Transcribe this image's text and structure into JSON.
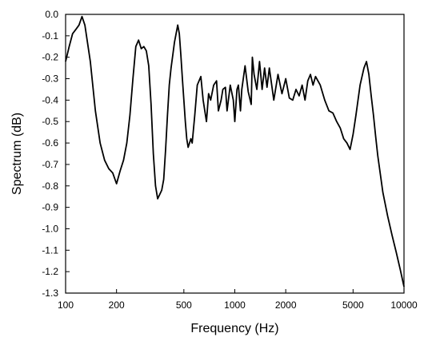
{
  "chart_data": {
    "type": "line",
    "title": "",
    "xlabel": "Frequency (Hz)",
    "ylabel": "Spectrum (dB)",
    "xscale": "log",
    "xlim": [
      100,
      10000
    ],
    "ylim": [
      -1.3,
      0.0
    ],
    "grid": false,
    "legend": "none",
    "x_ticks": [
      {
        "value": 100,
        "label": "100"
      },
      {
        "value": 200,
        "label": "200"
      },
      {
        "value": 500,
        "label": "500"
      },
      {
        "value": 1000,
        "label": "1000"
      },
      {
        "value": 2000,
        "label": "2000"
      },
      {
        "value": 5000,
        "label": "5000"
      },
      {
        "value": 10000,
        "label": "10000"
      }
    ],
    "y_ticks": [
      {
        "value": 0.0,
        "label": "0.0"
      },
      {
        "value": -0.1,
        "label": "-0.1"
      },
      {
        "value": -0.2,
        "label": "-0.2"
      },
      {
        "value": -0.3,
        "label": "-0.3"
      },
      {
        "value": -0.4,
        "label": "-0.4"
      },
      {
        "value": -0.5,
        "label": "-0.5"
      },
      {
        "value": -0.6,
        "label": "-0.6"
      },
      {
        "value": -0.7,
        "label": "-0.7"
      },
      {
        "value": -0.8,
        "label": "-0.8"
      },
      {
        "value": -0.9,
        "label": "-0.9"
      },
      {
        "value": -1.0,
        "label": "-1.0"
      },
      {
        "value": -1.1,
        "label": "-1.1"
      },
      {
        "value": -1.2,
        "label": "-1.2"
      },
      {
        "value": -1.3,
        "label": "-1.3"
      }
    ],
    "line_color": "#000000",
    "series": [
      {
        "x": [
          100,
          105,
          110,
          115,
          120,
          125,
          130,
          140,
          150,
          160,
          170,
          180,
          190,
          200,
          210,
          220,
          230,
          240,
          250,
          260,
          270,
          280,
          290,
          300,
          310,
          320,
          330,
          340,
          350,
          360,
          370,
          380,
          390,
          400,
          410,
          420,
          430,
          440,
          460,
          470,
          480,
          490,
          500,
          510,
          520,
          530,
          550,
          560,
          580,
          600,
          630,
          650,
          680,
          700,
          720,
          750,
          780,
          800,
          830,
          850,
          880,
          900,
          940,
          980,
          1000,
          1030,
          1050,
          1080,
          1100,
          1150,
          1200,
          1250,
          1270,
          1300,
          1350,
          1400,
          1450,
          1500,
          1550,
          1600,
          1700,
          1800,
          1900,
          2000,
          2100,
          2200,
          2300,
          2400,
          2500,
          2600,
          2700,
          2800,
          2900,
          3000,
          3200,
          3400,
          3600,
          3800,
          4000,
          4200,
          4400,
          4600,
          4800,
          5000,
          5200,
          5500,
          5800,
          6000,
          6200,
          6400,
          6600,
          6800,
          7000,
          7500,
          8000,
          8500,
          9000,
          9500,
          10000
        ],
        "y": [
          -0.22,
          -0.15,
          -0.09,
          -0.07,
          -0.05,
          -0.01,
          -0.05,
          -0.22,
          -0.45,
          -0.6,
          -0.68,
          -0.72,
          -0.74,
          -0.79,
          -0.73,
          -0.68,
          -0.6,
          -0.47,
          -0.3,
          -0.15,
          -0.12,
          -0.16,
          -0.15,
          -0.17,
          -0.24,
          -0.42,
          -0.65,
          -0.8,
          -0.86,
          -0.84,
          -0.82,
          -0.77,
          -0.63,
          -0.47,
          -0.33,
          -0.25,
          -0.19,
          -0.13,
          -0.05,
          -0.09,
          -0.19,
          -0.3,
          -0.4,
          -0.5,
          -0.58,
          -0.62,
          -0.58,
          -0.6,
          -0.47,
          -0.33,
          -0.29,
          -0.4,
          -0.5,
          -0.37,
          -0.4,
          -0.33,
          -0.31,
          -0.45,
          -0.4,
          -0.35,
          -0.34,
          -0.45,
          -0.33,
          -0.4,
          -0.5,
          -0.35,
          -0.33,
          -0.45,
          -0.35,
          -0.24,
          -0.36,
          -0.42,
          -0.2,
          -0.28,
          -0.35,
          -0.22,
          -0.35,
          -0.25,
          -0.34,
          -0.25,
          -0.4,
          -0.28,
          -0.37,
          -0.3,
          -0.39,
          -0.4,
          -0.35,
          -0.38,
          -0.33,
          -0.4,
          -0.31,
          -0.28,
          -0.33,
          -0.29,
          -0.33,
          -0.4,
          -0.45,
          -0.46,
          -0.5,
          -0.53,
          -0.58,
          -0.6,
          -0.63,
          -0.56,
          -0.47,
          -0.33,
          -0.25,
          -0.22,
          -0.28,
          -0.38,
          -0.47,
          -0.57,
          -0.66,
          -0.83,
          -0.94,
          -1.03,
          -1.11,
          -1.19,
          -1.27
        ]
      }
    ]
  }
}
